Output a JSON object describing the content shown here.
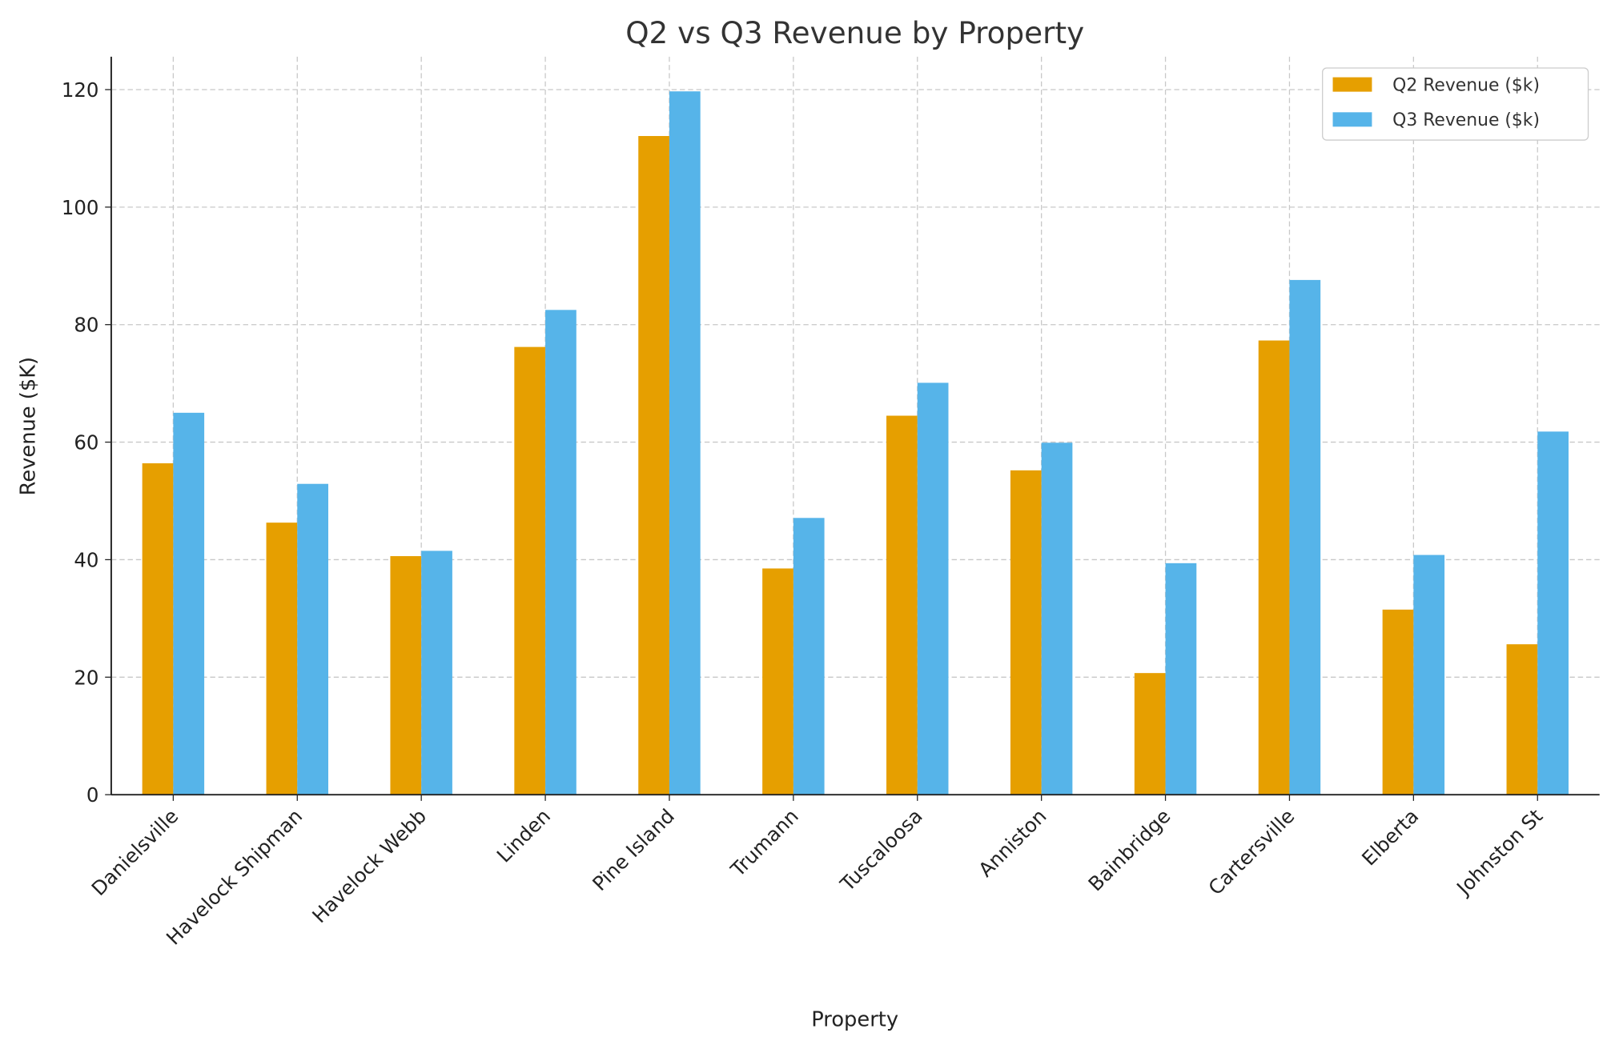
{
  "chart_data": {
    "type": "bar",
    "title": "Q2 vs Q3 Revenue by Property",
    "xlabel": "Property",
    "ylabel": "Revenue ($K)",
    "categories": [
      "Danielsville",
      "Havelock Shipman",
      "Havelock Webb",
      "Linden",
      "Pine Island",
      "Trumann",
      "Tuscaloosa",
      "Anniston",
      "Bainbridge",
      "Cartersville",
      "Elberta",
      "Johnston St"
    ],
    "series": [
      {
        "name": "Q2 Revenue ($k)",
        "color": "#E69F00",
        "values": [
          56.4,
          46.3,
          40.6,
          76.2,
          112.1,
          38.5,
          64.5,
          55.2,
          20.7,
          77.3,
          31.5,
          25.6
        ]
      },
      {
        "name": "Q3 Revenue ($k)",
        "color": "#56B4E9",
        "values": [
          65.0,
          52.9,
          41.5,
          82.5,
          119.7,
          47.1,
          70.1,
          59.9,
          39.4,
          87.6,
          40.8,
          61.8
        ]
      }
    ],
    "ylim": [
      0,
      125.6
    ],
    "yticks": [
      0,
      20,
      40,
      60,
      80,
      100,
      120
    ],
    "grid": true,
    "legend_position": "top-right"
  }
}
